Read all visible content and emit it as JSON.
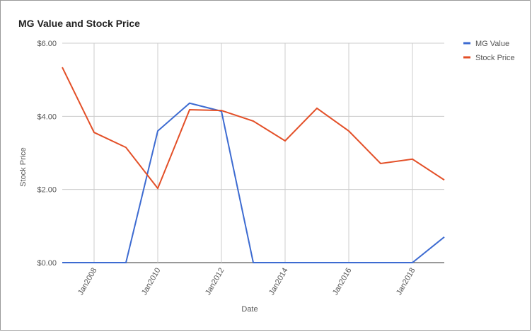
{
  "chart_data": {
    "type": "line",
    "title": "MG Value and Stock Price",
    "x_label": "Date",
    "y_label": "Stock Price",
    "categories": [
      null,
      "Jan2008",
      null,
      "Jan2010",
      null,
      "Jan2012",
      null,
      "Jan2014",
      null,
      "Jan2016",
      null,
      "Jan2018",
      null
    ],
    "series": [
      {
        "name": "MG Value",
        "color": "#3d6bd1",
        "values": [
          0,
          0,
          0,
          3.6,
          4.36,
          4.14,
          0,
          0,
          0,
          0,
          0,
          0,
          0.7
        ]
      },
      {
        "name": "Stock Price",
        "color": "#e34f27",
        "values": [
          5.34,
          3.56,
          3.15,
          2.03,
          4.18,
          4.16,
          3.87,
          3.33,
          4.22,
          3.6,
          2.71,
          2.83,
          2.26
        ]
      }
    ],
    "ylim": [
      0,
      6
    ],
    "yticks": [
      {
        "value": 0,
        "label": "$0.00"
      },
      {
        "value": 2,
        "label": "$2.00"
      },
      {
        "value": 4,
        "label": "$4.00"
      },
      {
        "value": 6,
        "label": "$6.00"
      }
    ],
    "grid": true,
    "legend": "right"
  }
}
